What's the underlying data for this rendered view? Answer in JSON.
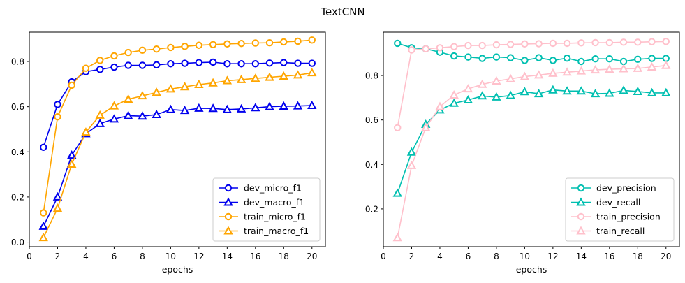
{
  "figure": {
    "suptitle": "TextCNN"
  },
  "chart_data": [
    {
      "type": "line",
      "xlabel": "epochs",
      "ylabel": "",
      "xlim": [
        0,
        20.95
      ],
      "ylim": [
        -0.02,
        0.93
      ],
      "xticks": [
        0,
        2,
        4,
        6,
        8,
        10,
        12,
        14,
        16,
        18,
        20
      ],
      "yticks": [
        0.0,
        0.2,
        0.4,
        0.6,
        0.8
      ],
      "ytick_labels": [
        "0.0",
        "0.2",
        "0.4",
        "0.6",
        "0.8"
      ],
      "legend_position": "lower-right",
      "x": [
        1,
        2,
        3,
        4,
        5,
        6,
        7,
        8,
        9,
        10,
        11,
        12,
        13,
        14,
        15,
        16,
        17,
        18,
        19,
        20
      ],
      "series": [
        {
          "name": "dev_micro_f1",
          "color": "#0000ee",
          "marker": "circle",
          "values": [
            0.42,
            0.61,
            0.71,
            0.755,
            0.765,
            0.775,
            0.783,
            0.783,
            0.785,
            0.79,
            0.792,
            0.795,
            0.797,
            0.79,
            0.79,
            0.79,
            0.793,
            0.795,
            0.792,
            0.792
          ]
        },
        {
          "name": "dev_macro_f1",
          "color": "#0000ee",
          "marker": "triangle",
          "values": [
            0.07,
            0.2,
            0.385,
            0.48,
            0.525,
            0.545,
            0.56,
            0.558,
            0.565,
            0.587,
            0.583,
            0.593,
            0.592,
            0.587,
            0.59,
            0.595,
            0.6,
            0.602,
            0.603,
            0.605
          ]
        },
        {
          "name": "train_micro_f1",
          "color": "#ffa500",
          "marker": "circle",
          "values": [
            0.13,
            0.555,
            0.695,
            0.77,
            0.805,
            0.825,
            0.84,
            0.85,
            0.855,
            0.862,
            0.867,
            0.872,
            0.875,
            0.878,
            0.88,
            0.882,
            0.883,
            0.887,
            0.89,
            0.895
          ]
        },
        {
          "name": "train_macro_f1",
          "color": "#ffa500",
          "marker": "triangle",
          "values": [
            0.02,
            0.15,
            0.345,
            0.487,
            0.562,
            0.603,
            0.633,
            0.648,
            0.663,
            0.678,
            0.688,
            0.698,
            0.705,
            0.715,
            0.72,
            0.725,
            0.73,
            0.735,
            0.74,
            0.75
          ]
        }
      ]
    },
    {
      "type": "line",
      "xlabel": "epochs",
      "ylabel": "",
      "xlim": [
        0,
        20.95
      ],
      "ylim": [
        0.03,
        0.995
      ],
      "xticks": [
        0,
        2,
        4,
        6,
        8,
        10,
        12,
        14,
        16,
        18,
        20
      ],
      "yticks": [
        0.2,
        0.4,
        0.6,
        0.8
      ],
      "ytick_labels": [
        "0.2",
        "0.4",
        "0.6",
        "0.8"
      ],
      "legend_position": "lower-right",
      "x": [
        1,
        2,
        3,
        4,
        5,
        6,
        7,
        8,
        9,
        10,
        11,
        12,
        13,
        14,
        15,
        16,
        17,
        18,
        19,
        20
      ],
      "series": [
        {
          "name": "dev_precision",
          "color": "#00bfb0",
          "marker": "circle",
          "values": [
            0.945,
            0.925,
            0.92,
            0.905,
            0.888,
            0.883,
            0.877,
            0.883,
            0.88,
            0.868,
            0.88,
            0.868,
            0.878,
            0.863,
            0.875,
            0.875,
            0.863,
            0.873,
            0.877,
            0.877
          ]
        },
        {
          "name": "dev_recall",
          "color": "#00bfb0",
          "marker": "triangle",
          "values": [
            0.27,
            0.455,
            0.58,
            0.645,
            0.675,
            0.69,
            0.708,
            0.703,
            0.71,
            0.727,
            0.718,
            0.735,
            0.73,
            0.73,
            0.718,
            0.72,
            0.733,
            0.728,
            0.722,
            0.722
          ]
        },
        {
          "name": "train_precision",
          "color": "#ffc0cb",
          "marker": "circle",
          "values": [
            0.565,
            0.915,
            0.92,
            0.925,
            0.93,
            0.935,
            0.935,
            0.938,
            0.94,
            0.942,
            0.943,
            0.945,
            0.945,
            0.947,
            0.948,
            0.948,
            0.95,
            0.95,
            0.952,
            0.953
          ]
        },
        {
          "name": "train_recall",
          "color": "#ffc0cb",
          "marker": "triangle",
          "values": [
            0.07,
            0.395,
            0.565,
            0.66,
            0.712,
            0.74,
            0.76,
            0.775,
            0.785,
            0.795,
            0.802,
            0.81,
            0.815,
            0.82,
            0.825,
            0.828,
            0.83,
            0.832,
            0.838,
            0.845
          ]
        }
      ]
    }
  ]
}
